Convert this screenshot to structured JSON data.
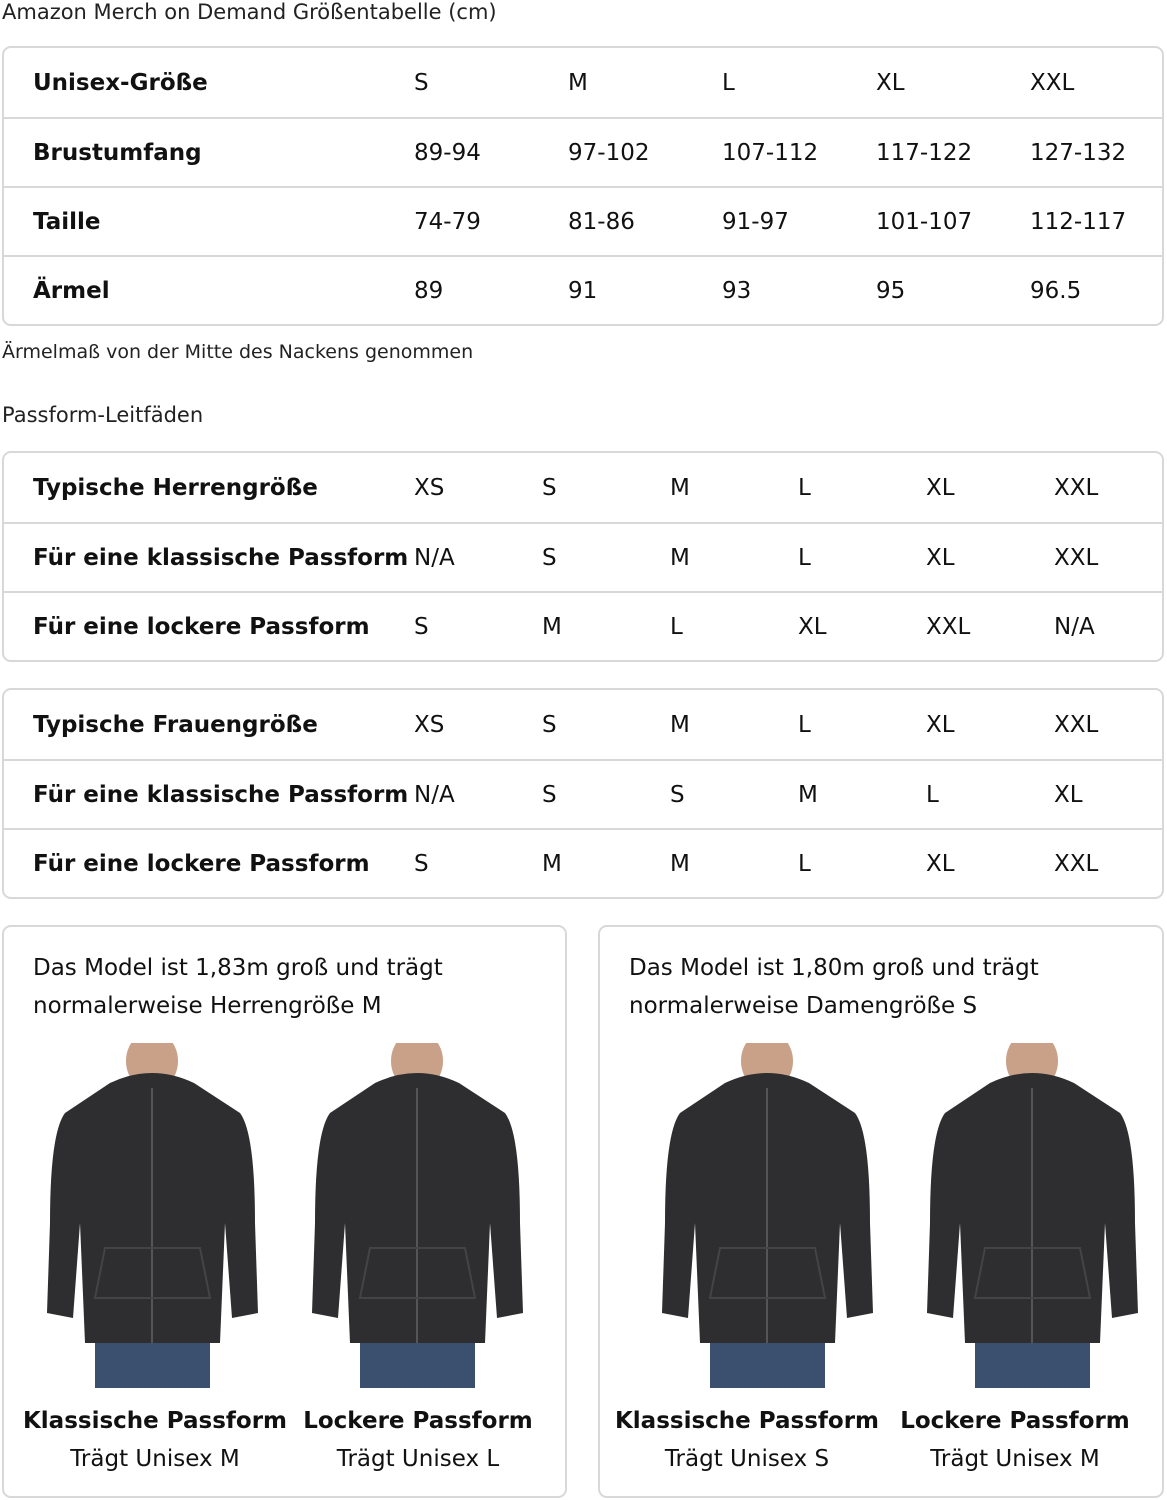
{
  "title": "Amazon Merch on Demand Größentabelle (cm)",
  "unisex_table": {
    "rows": [
      [
        "Unisex-Größe",
        "S",
        "M",
        "L",
        "XL",
        "XXL"
      ],
      [
        "Brustumfang",
        "89-94",
        "97-102",
        "107-112",
        "117-122",
        "127-132"
      ],
      [
        "Taille",
        "74-79",
        "81-86",
        "91-97",
        "101-107",
        "112-117"
      ],
      [
        "Ärmel",
        "89",
        "91",
        "93",
        "95",
        "96.5"
      ]
    ]
  },
  "note": "Ärmelmaß von der Mitte des Nackens genommen",
  "fit_title": "Passform-Leitfäden",
  "men_table": {
    "rows": [
      [
        "Typische Herrengröße",
        "XS",
        "S",
        "M",
        "L",
        "XL",
        "XXL"
      ],
      [
        "Für eine klassische Passform",
        "N/A",
        "S",
        "M",
        "L",
        "XL",
        "XXL"
      ],
      [
        "Für eine lockere Passform",
        "S",
        "M",
        "L",
        "XL",
        "XXL",
        "N/A"
      ]
    ]
  },
  "women_table": {
    "rows": [
      [
        "Typische Frauengröße",
        "XS",
        "S",
        "M",
        "L",
        "XL",
        "XXL"
      ],
      [
        "Für eine klassische Passform",
        "N/A",
        "S",
        "S",
        "M",
        "L",
        "XL"
      ],
      [
        "Für eine lockere Passform",
        "S",
        "M",
        "M",
        "L",
        "XL",
        "XXL"
      ]
    ]
  },
  "cards": [
    {
      "text": "Das Model ist 1,83m groß und trägt normalerweise Herrengröße M",
      "photos": [
        {
          "fit": "Klassische Passform",
          "wear": "Trägt Unisex M"
        },
        {
          "fit": "Lockere Passform",
          "wear": "Trägt Unisex L"
        }
      ]
    },
    {
      "text": "Das Model ist 1,80m groß und trägt normalerweise Damengröße S",
      "photos": [
        {
          "fit": "Klassische Passform",
          "wear": "Trägt Unisex S"
        },
        {
          "fit": "Lockere Passform",
          "wear": "Trägt Unisex M"
        }
      ]
    }
  ],
  "colors": {
    "hoodie": "#2e2e30",
    "jeans": "#3b4f6e",
    "border": "#d8d8d8"
  }
}
